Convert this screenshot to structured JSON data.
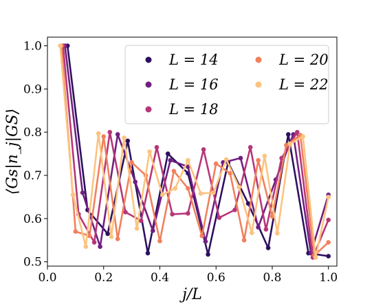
{
  "chart_data": {
    "type": "line",
    "title": "",
    "xlabel": "j/L",
    "ylabel": "⟨Gs|n_j|GS⟩",
    "xlim": [
      0.0,
      1.03
    ],
    "ylim": [
      0.49,
      1.02
    ],
    "xticks": [
      0.0,
      0.2,
      0.4,
      0.6,
      0.8,
      1.0
    ],
    "xtick_labels": [
      "0.0",
      "0.2",
      "0.4",
      "0.6",
      "0.8",
      "1.0"
    ],
    "yticks": [
      0.5,
      0.6,
      0.7,
      0.8,
      0.9,
      1.0
    ],
    "ytick_labels": [
      "0.5",
      "0.6",
      "0.7",
      "0.8",
      "0.9",
      "1.0"
    ],
    "grid": false,
    "legend_position": "top-right",
    "legend_columns": 2,
    "series": [
      {
        "name": "L = 14",
        "color": "#2c115f",
        "x": [
          0.0714,
          0.1429,
          0.2143,
          0.2857,
          0.3571,
          0.4286,
          0.5,
          0.5714,
          0.6429,
          0.7143,
          0.7857,
          0.8571,
          0.9286,
          1.0
        ],
        "y": [
          1.0,
          0.62,
          0.565,
          0.78,
          0.52,
          0.75,
          0.705,
          0.517,
          0.73,
          0.635,
          0.532,
          0.795,
          0.52,
          0.513
        ]
      },
      {
        "name": "L = 16",
        "color": "#711f81",
        "x": [
          0.0625,
          0.125,
          0.1875,
          0.25,
          0.3125,
          0.375,
          0.4375,
          0.5,
          0.5625,
          0.625,
          0.6875,
          0.75,
          0.8125,
          0.875,
          0.9375,
          1.0
        ],
        "y": [
          1.0,
          0.66,
          0.535,
          0.795,
          0.685,
          0.572,
          0.735,
          0.72,
          0.547,
          0.73,
          0.74,
          0.58,
          0.69,
          0.795,
          0.52,
          0.655
        ]
      },
      {
        "name": "L = 18",
        "color": "#b63679",
        "x": [
          0.0556,
          0.1111,
          0.1667,
          0.2222,
          0.2778,
          0.3333,
          0.3889,
          0.4444,
          0.5,
          0.5556,
          0.6111,
          0.6667,
          0.7222,
          0.7778,
          0.8333,
          0.8889,
          0.9444,
          1.0
        ],
        "y": [
          1.0,
          0.61,
          0.545,
          0.8,
          0.615,
          0.595,
          0.765,
          0.61,
          0.612,
          0.76,
          0.602,
          0.62,
          0.765,
          0.575,
          0.74,
          0.8,
          0.51,
          0.597
        ]
      },
      {
        "name": "L = 20",
        "color": "#f1805c",
        "x": [
          0.05,
          0.1,
          0.15,
          0.2,
          0.25,
          0.3,
          0.35,
          0.4,
          0.45,
          0.5,
          0.55,
          0.6,
          0.65,
          0.7,
          0.75,
          0.8,
          0.85,
          0.9,
          0.95,
          1.0
        ],
        "y": [
          1.0,
          0.57,
          0.56,
          0.79,
          0.553,
          0.73,
          0.7,
          0.548,
          0.71,
          0.67,
          0.56,
          0.727,
          0.705,
          0.55,
          0.735,
          0.605,
          0.77,
          0.793,
          0.515,
          0.545
        ]
      },
      {
        "name": "L = 22",
        "color": "#fcc37f",
        "x": [
          0.0455,
          0.0909,
          0.1364,
          0.1818,
          0.2273,
          0.2727,
          0.3182,
          0.3636,
          0.4091,
          0.4545,
          0.5,
          0.5455,
          0.5909,
          0.6364,
          0.6818,
          0.7273,
          0.7727,
          0.8182,
          0.8636,
          0.9091,
          0.9545,
          1.0
        ],
        "y": [
          1.0,
          0.655,
          0.535,
          0.797,
          0.558,
          0.787,
          0.577,
          0.755,
          0.655,
          0.67,
          0.735,
          0.658,
          0.66,
          0.737,
          0.673,
          0.567,
          0.745,
          0.566,
          0.773,
          0.79,
          0.51,
          0.65
        ]
      }
    ]
  }
}
